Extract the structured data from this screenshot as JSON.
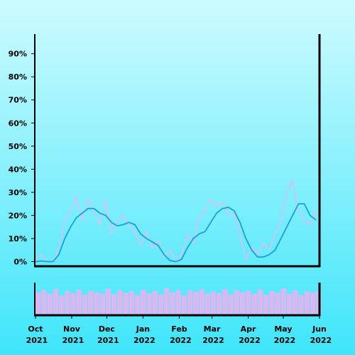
{
  "chart_data": [
    {
      "type": "line",
      "x": [
        0,
        5,
        10,
        15,
        20,
        25,
        30,
        35,
        40,
        45,
        50,
        55,
        60,
        65,
        70,
        75,
        80,
        85,
        90,
        95,
        100,
        105,
        110,
        115,
        120,
        125,
        130,
        135,
        140,
        145,
        150,
        155,
        160,
        165,
        170,
        175,
        180,
        185,
        190,
        195,
        200,
        205,
        210,
        215,
        220,
        225,
        230,
        235,
        240
      ],
      "series": [
        {
          "color": "#e3b9f2",
          "values": [
            1,
            3,
            0,
            0,
            6,
            18,
            22,
            28,
            18,
            27,
            22,
            16,
            27,
            12,
            18,
            20,
            16,
            13,
            7,
            13,
            6,
            9,
            2,
            5,
            0,
            3,
            12,
            8,
            19,
            22,
            27,
            24,
            26,
            20,
            21,
            11,
            1,
            6,
            3,
            8,
            5,
            12,
            18,
            30,
            35,
            22,
            18,
            16,
            22
          ]
        },
        {
          "color": "#1c9fd8",
          "values": [
            0,
            0.3,
            0,
            0,
            3,
            10,
            15,
            19,
            21,
            23,
            23,
            21,
            20,
            17,
            15.5,
            16,
            17,
            16,
            12,
            10,
            8.5,
            7,
            3,
            0.5,
            0,
            1,
            6,
            10,
            12,
            13,
            17,
            21,
            23,
            23.5,
            22,
            17,
            10,
            5,
            2,
            2,
            3,
            5,
            10,
            15,
            20,
            25,
            25,
            20,
            18
          ]
        }
      ],
      "xlim": [
        0,
        243
      ],
      "ylim": [
        -2,
        98.5
      ],
      "yticks": [
        {
          "value": 0,
          "label": "0%"
        },
        {
          "value": 10,
          "label": "10%"
        },
        {
          "value": 20,
          "label": "20%"
        },
        {
          "value": 30,
          "label": "30%"
        },
        {
          "value": 40,
          "label": "40%"
        },
        {
          "value": 50,
          "label": "50%"
        },
        {
          "value": 60,
          "label": "60%"
        },
        {
          "value": 70,
          "label": "70%"
        },
        {
          "value": 80,
          "label": "80%"
        },
        {
          "value": 90,
          "label": "90%"
        }
      ]
    },
    {
      "type": "bar",
      "x": [
        0,
        5,
        10,
        15,
        20,
        25,
        30,
        35,
        40,
        45,
        50,
        55,
        60,
        65,
        70,
        75,
        80,
        85,
        90,
        95,
        100,
        105,
        110,
        115,
        120,
        125,
        130,
        135,
        140,
        145,
        150,
        155,
        160,
        165,
        170,
        175,
        180,
        185,
        190,
        195,
        200,
        205,
        210,
        215,
        220,
        225,
        230,
        235,
        240
      ],
      "color": "#d9b8f1",
      "values": [
        80,
        88,
        75,
        92,
        70,
        85,
        78,
        90,
        72,
        86,
        81,
        76,
        93,
        74,
        88,
        79,
        84,
        71,
        90,
        77,
        86,
        73,
        95,
        80,
        89,
        70,
        87,
        82,
        91,
        76,
        84,
        78,
        92,
        73,
        88,
        80,
        86,
        75,
        90,
        72,
        85,
        79,
        94,
        76,
        88,
        71,
        84,
        80,
        87
      ],
      "xlim": [
        0,
        243
      ],
      "xticks": [
        {
          "value": 0,
          "label": "Oct 2021"
        },
        {
          "value": 31,
          "label": "Nov 2021"
        },
        {
          "value": 61,
          "label": "Dec 2021"
        },
        {
          "value": 92,
          "label": "Jan 2022"
        },
        {
          "value": 123,
          "label": "Feb 2022"
        },
        {
          "value": 151,
          "label": "Mar 2022"
        },
        {
          "value": 182,
          "label": "Apr 2022"
        },
        {
          "value": 212,
          "label": "May 2022"
        },
        {
          "value": 243,
          "label": "Jun 2022"
        }
      ]
    }
  ]
}
